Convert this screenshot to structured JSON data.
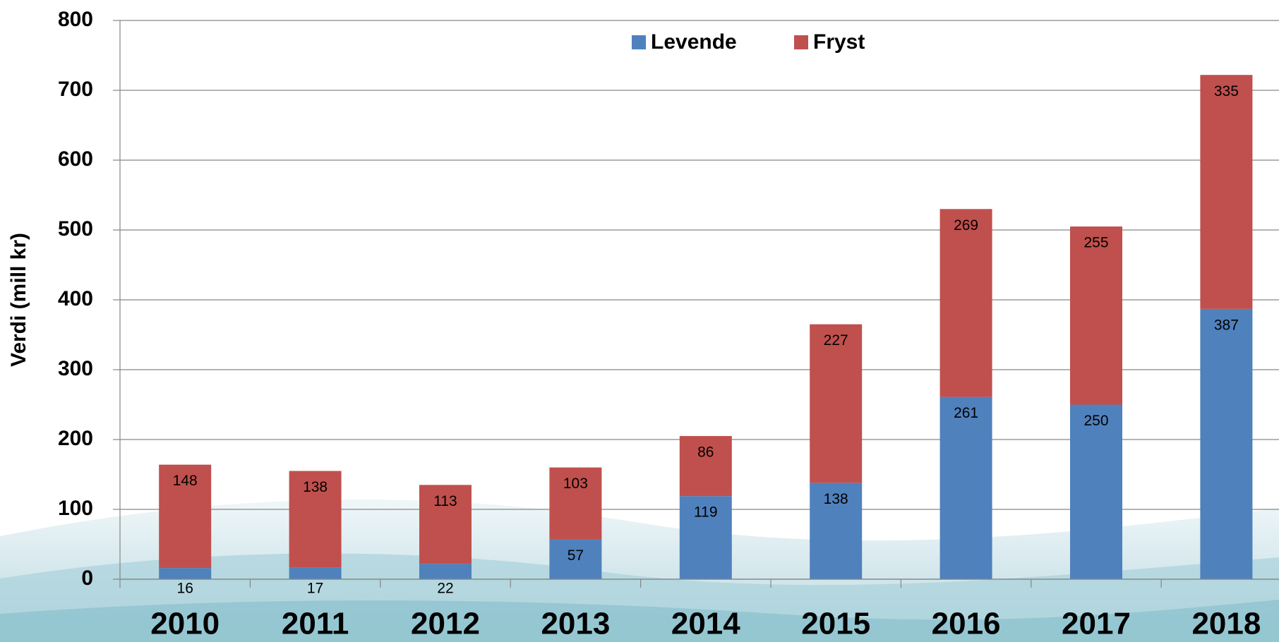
{
  "chart_data": {
    "type": "stacked_bar",
    "y_label": "Verdi (mill kr)",
    "categories": [
      "2010",
      "2011",
      "2012",
      "2013",
      "2014",
      "2015",
      "2016",
      "2017",
      "2018"
    ],
    "series": [
      {
        "name": "Levende",
        "color": "#4f81bd",
        "values": [
          16,
          17,
          22,
          57,
          119,
          138,
          261,
          250,
          387
        ]
      },
      {
        "name": "Fryst",
        "color": "#c0504d",
        "values": [
          148,
          138,
          113,
          103,
          86,
          227,
          269,
          255,
          335
        ]
      }
    ],
    "ylim": [
      0,
      800
    ],
    "yticks": [
      0,
      100,
      200,
      300,
      400,
      500,
      600,
      700,
      800
    ],
    "grid": true,
    "legend": "top"
  }
}
